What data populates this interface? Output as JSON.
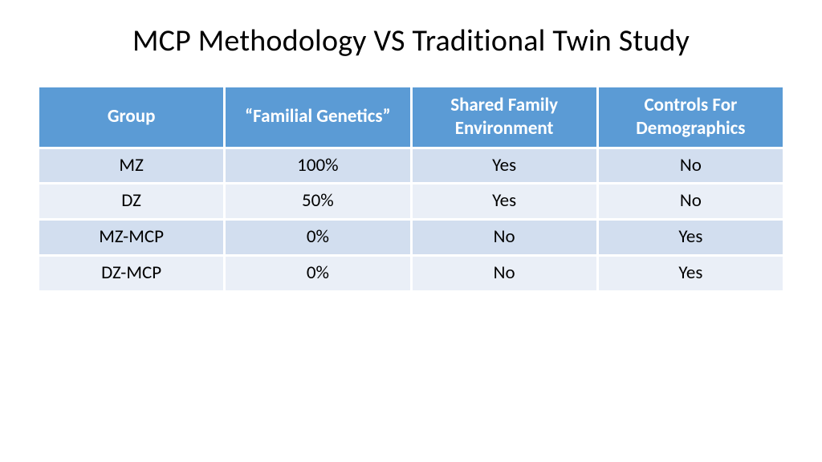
{
  "title": "MCP Methodology VS Traditional Twin Study",
  "table": {
    "type": "table",
    "header_bg": "#5b9bd5",
    "header_text_color": "#ffffff",
    "header_fontsize": 23,
    "header_fontweight": 700,
    "body_fontsize": 23,
    "body_text_color": "#000000",
    "row_colors": [
      "#d2deef",
      "#eaeff7",
      "#d2deef",
      "#eaeff7"
    ],
    "cell_spacing": 3,
    "column_widths": [
      "25%",
      "25%",
      "25%",
      "25%"
    ],
    "columns": [
      "Group",
      "“Familial Genetics”",
      "Shared Family Environment",
      "Controls For Demographics"
    ],
    "rows": [
      [
        "MZ",
        "100%",
        "Yes",
        "No"
      ],
      [
        "DZ",
        "50%",
        "Yes",
        "No"
      ],
      [
        "MZ-MCP",
        "0%",
        "No",
        "Yes"
      ],
      [
        "DZ-MCP",
        "0%",
        "No",
        "Yes"
      ]
    ]
  },
  "title_style": {
    "fontsize": 38,
    "color": "#000000",
    "fontweight": 400
  },
  "background_color": "#ffffff"
}
